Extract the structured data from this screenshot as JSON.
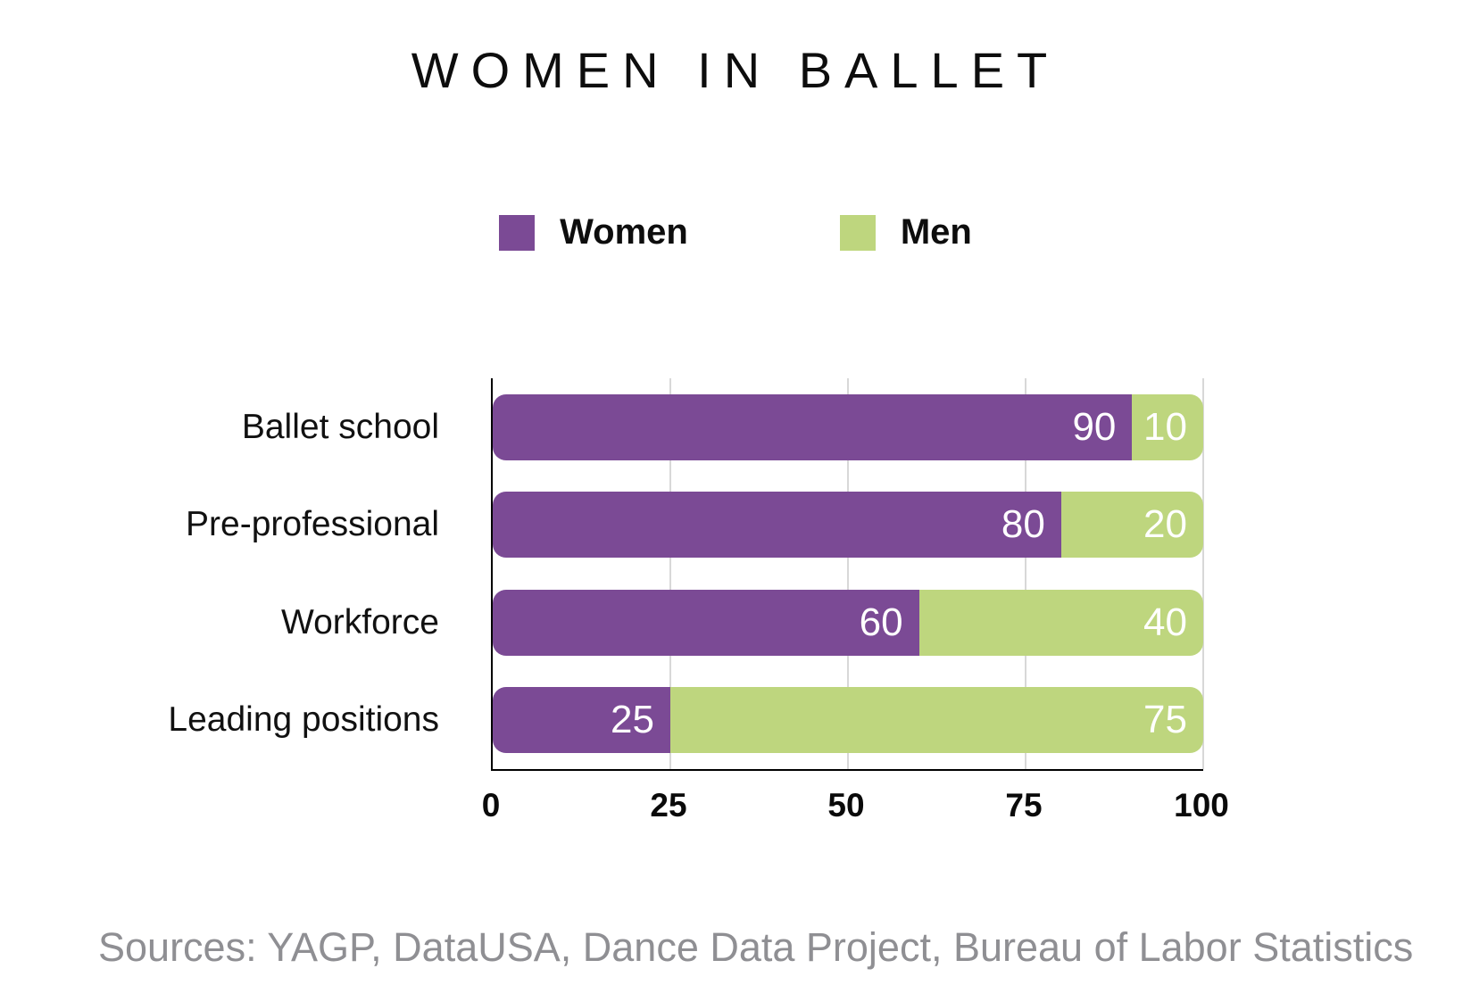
{
  "page": {
    "background": "#FFFFFF"
  },
  "chart_data": {
    "type": "bar",
    "orientation": "horizontal",
    "stacked": true,
    "title": "WOMEN IN BALLET",
    "categories": [
      "Ballet school",
      "Pre-professional",
      "Workforce",
      "Leading positions"
    ],
    "series": [
      {
        "name": "Women",
        "color": "#7B4A95",
        "values": [
          90,
          80,
          60,
          25
        ]
      },
      {
        "name": "Men",
        "color": "#BED67E",
        "values": [
          10,
          20,
          40,
          75
        ]
      }
    ],
    "xlim": [
      0,
      100
    ],
    "xticks": [
      0,
      25,
      50,
      75,
      100
    ],
    "grid": true,
    "legend_position": "top-center",
    "value_labels": "inside-end-white",
    "source": "Sources: YAGP, DataUSA, Dance Data Project, Bureau of Labor Statistics"
  },
  "colors": {
    "women": "#7B4A95",
    "men": "#BED67E",
    "axis": "#000000",
    "gridline": "#D8D8D8",
    "tick_text": "#0A0A0A",
    "category_text": "#111111",
    "value_text": "#FFFFFF",
    "source_text": "#8F8F93"
  }
}
